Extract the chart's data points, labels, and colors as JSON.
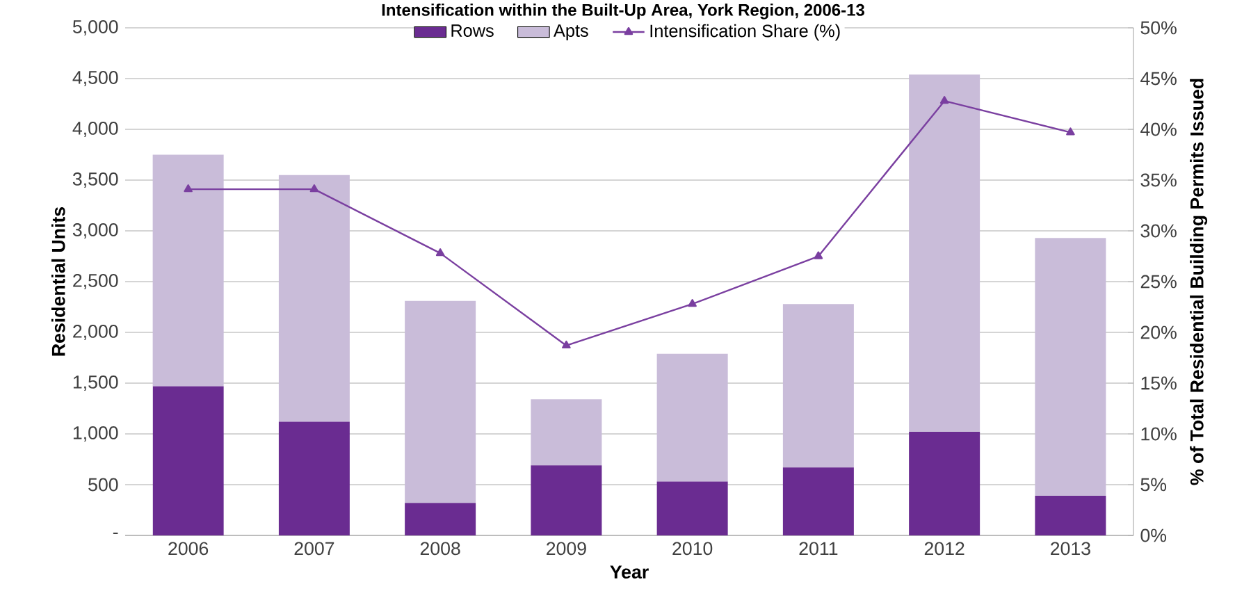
{
  "chart_data": {
    "type": "bar",
    "title": "Intensification within the Built-Up Area, York Region,  2006-13",
    "xlabel": "Year",
    "ylabel": "Residential Units",
    "y2label": "% of Total Residential Building Permits Issued",
    "categories": [
      "2006",
      "2007",
      "2008",
      "2009",
      "2010",
      "2011",
      "2012",
      "2013"
    ],
    "stacked": true,
    "series": [
      {
        "name": "Rows",
        "color": "#6a2c91",
        "values": [
          1470,
          1120,
          320,
          690,
          530,
          670,
          1020,
          390
        ]
      },
      {
        "name": "Apts",
        "color": "#c9bcd9",
        "values": [
          2280,
          2430,
          1990,
          650,
          1260,
          1610,
          3520,
          2540
        ]
      },
      {
        "name": "Intensification Share (%)",
        "type": "line",
        "axis": "y2",
        "color": "#7a3fa0",
        "marker": "triangle",
        "values": [
          34.1,
          34.1,
          27.8,
          18.7,
          22.8,
          27.5,
          42.8,
          39.7
        ]
      }
    ],
    "ylim": [
      0,
      5000
    ],
    "yticks": [
      {
        "value": 0,
        "label": "-"
      },
      500,
      {
        "value": 1000,
        "label": "1,000"
      },
      {
        "value": 1500,
        "label": "1,500"
      },
      {
        "value": 2000,
        "label": "2,000"
      },
      {
        "value": 2500,
        "label": "2,500"
      },
      {
        "value": 3000,
        "label": "3,000"
      },
      {
        "value": 3500,
        "label": "3,500"
      },
      {
        "value": 4000,
        "label": "4,000"
      },
      {
        "value": 4500,
        "label": "4,500"
      },
      {
        "value": 5000,
        "label": "5,000"
      }
    ],
    "y2lim": [
      0,
      50
    ],
    "y2ticks": [
      {
        "value": 0,
        "label": "0%"
      },
      {
        "value": 5,
        "label": "5%"
      },
      {
        "value": 10,
        "label": "10%"
      },
      {
        "value": 15,
        "label": "15%"
      },
      {
        "value": 20,
        "label": "20%"
      },
      {
        "value": 25,
        "label": "25%"
      },
      {
        "value": 30,
        "label": "30%"
      },
      {
        "value": 35,
        "label": "35%"
      },
      {
        "value": 40,
        "label": "40%"
      },
      {
        "value": 45,
        "label": "45%"
      },
      {
        "value": 50,
        "label": "50%"
      }
    ],
    "grid": "y",
    "legend": "top"
  }
}
